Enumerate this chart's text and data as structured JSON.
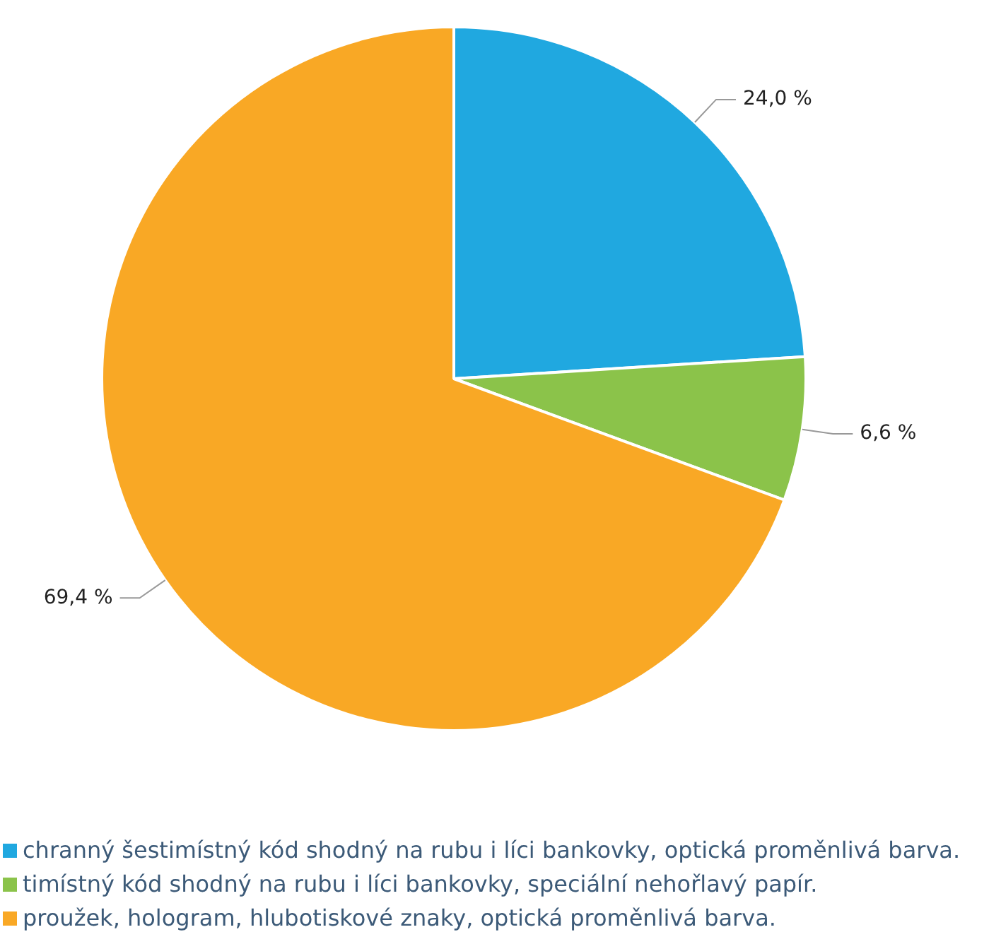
{
  "chart_data": {
    "type": "pie",
    "categories": [
      "chranný šestimístný kód shodný na rubu i líci bankovky, optická proměnlivá barva.",
      "timístný kód shodný na rubu i líci bankovky, speciální nehořlavý papír.",
      "proužek, hologram, hlubotiskové znaky, optická proměnlivá barva."
    ],
    "values": [
      24.0,
      6.6,
      69.4
    ],
    "colors": [
      "#20a8e0",
      "#8bc34a",
      "#f9a825"
    ],
    "value_labels": [
      "24,0 %",
      "6,6 %",
      "69,4 %"
    ],
    "legend": "bottom"
  }
}
